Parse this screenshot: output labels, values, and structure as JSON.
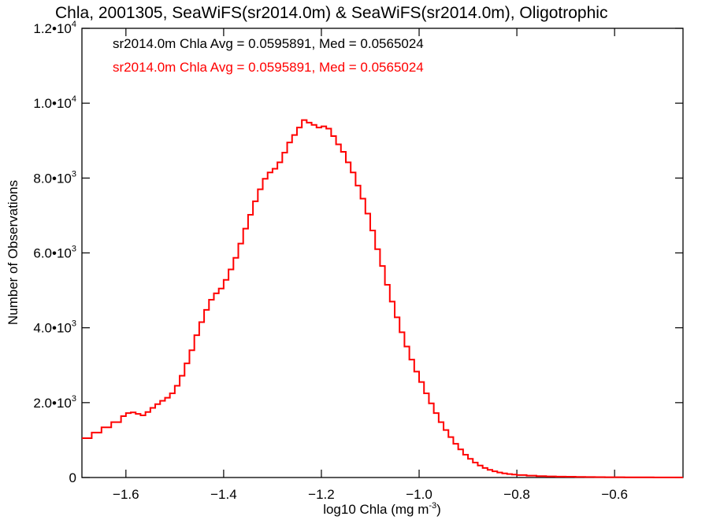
{
  "chart_data": {
    "type": "line",
    "title": "Chla, 2001305, SeaWiFS(sr2014.0m) & SeaWiFS(sr2014.0m), Oligotrophic",
    "xlabel": "log10 Chla (mg m",
    "xlabel_sup": "-3",
    "xlabel_suffix": ")",
    "ylabel": "Number of Observations",
    "xlim": [
      -1.69,
      -0.46
    ],
    "ylim": [
      0,
      12000
    ],
    "x_ticks": [
      {
        "value": -1.6,
        "label": "−1.6"
      },
      {
        "value": -1.4,
        "label": "−1.4"
      },
      {
        "value": -1.2,
        "label": "−1.2"
      },
      {
        "value": -1.0,
        "label": "−1.0"
      },
      {
        "value": -0.8,
        "label": "−0.8"
      },
      {
        "value": -0.6,
        "label": "−0.6"
      }
    ],
    "y_ticks": [
      {
        "value": 0,
        "label": "0",
        "exp": ""
      },
      {
        "value": 2000,
        "label": "2.0•10",
        "exp": "3"
      },
      {
        "value": 4000,
        "label": "4.0•10",
        "exp": "3"
      },
      {
        "value": 6000,
        "label": "6.0•10",
        "exp": "3"
      },
      {
        "value": 8000,
        "label": "8.0•10",
        "exp": "3"
      },
      {
        "value": 10000,
        "label": "1.0•10",
        "exp": "4"
      },
      {
        "value": 12000,
        "label": "1.2•10",
        "exp": "4"
      }
    ],
    "annotations": [
      {
        "text": "sr2014.0m Chla Avg = 0.0595891, Med = 0.0565024",
        "color": "#000000"
      },
      {
        "text": "sr2014.0m Chla Avg = 0.0595891, Med = 0.0565024",
        "color": "#ff0000"
      }
    ],
    "series": [
      {
        "color": "#ff0000",
        "points": [
          [
            -1.69,
            1050
          ],
          [
            -1.67,
            1200
          ],
          [
            -1.65,
            1340
          ],
          [
            -1.63,
            1480
          ],
          [
            -1.61,
            1640
          ],
          [
            -1.6,
            1720
          ],
          [
            -1.59,
            1740
          ],
          [
            -1.58,
            1700
          ],
          [
            -1.57,
            1660
          ],
          [
            -1.56,
            1750
          ],
          [
            -1.55,
            1860
          ],
          [
            -1.54,
            1960
          ],
          [
            -1.53,
            2050
          ],
          [
            -1.52,
            2130
          ],
          [
            -1.51,
            2250
          ],
          [
            -1.5,
            2450
          ],
          [
            -1.49,
            2720
          ],
          [
            -1.48,
            3050
          ],
          [
            -1.47,
            3400
          ],
          [
            -1.46,
            3800
          ],
          [
            -1.45,
            4150
          ],
          [
            -1.44,
            4480
          ],
          [
            -1.43,
            4750
          ],
          [
            -1.42,
            4920
          ],
          [
            -1.41,
            5050
          ],
          [
            -1.4,
            5280
          ],
          [
            -1.39,
            5560
          ],
          [
            -1.38,
            5870
          ],
          [
            -1.37,
            6250
          ],
          [
            -1.36,
            6650
          ],
          [
            -1.35,
            7020
          ],
          [
            -1.34,
            7380
          ],
          [
            -1.33,
            7700
          ],
          [
            -1.32,
            7980
          ],
          [
            -1.31,
            8150
          ],
          [
            -1.3,
            8250
          ],
          [
            -1.29,
            8420
          ],
          [
            -1.28,
            8680
          ],
          [
            -1.27,
            8950
          ],
          [
            -1.26,
            9150
          ],
          [
            -1.25,
            9350
          ],
          [
            -1.24,
            9550
          ],
          [
            -1.23,
            9480
          ],
          [
            -1.22,
            9420
          ],
          [
            -1.21,
            9350
          ],
          [
            -1.2,
            9380
          ],
          [
            -1.19,
            9320
          ],
          [
            -1.18,
            9120
          ],
          [
            -1.17,
            8900
          ],
          [
            -1.16,
            8700
          ],
          [
            -1.15,
            8420
          ],
          [
            -1.14,
            8150
          ],
          [
            -1.13,
            7800
          ],
          [
            -1.12,
            7450
          ],
          [
            -1.11,
            7050
          ],
          [
            -1.1,
            6600
          ],
          [
            -1.09,
            6100
          ],
          [
            -1.08,
            5650
          ],
          [
            -1.07,
            5150
          ],
          [
            -1.06,
            4700
          ],
          [
            -1.05,
            4280
          ],
          [
            -1.04,
            3880
          ],
          [
            -1.03,
            3500
          ],
          [
            -1.02,
            3150
          ],
          [
            -1.01,
            2830
          ],
          [
            -1.0,
            2550
          ],
          [
            -0.99,
            2250
          ],
          [
            -0.98,
            1980
          ],
          [
            -0.97,
            1720
          ],
          [
            -0.96,
            1480
          ],
          [
            -0.95,
            1270
          ],
          [
            -0.94,
            1080
          ],
          [
            -0.93,
            900
          ],
          [
            -0.92,
            750
          ],
          [
            -0.91,
            610
          ],
          [
            -0.9,
            500
          ],
          [
            -0.89,
            400
          ],
          [
            -0.88,
            320
          ],
          [
            -0.87,
            255
          ],
          [
            -0.86,
            205
          ],
          [
            -0.85,
            165
          ],
          [
            -0.84,
            135
          ],
          [
            -0.83,
            110
          ],
          [
            -0.82,
            92
          ],
          [
            -0.81,
            78
          ],
          [
            -0.8,
            66
          ],
          [
            -0.78,
            50
          ],
          [
            -0.76,
            38
          ],
          [
            -0.74,
            30
          ],
          [
            -0.72,
            24
          ],
          [
            -0.7,
            20
          ],
          [
            -0.68,
            16
          ],
          [
            -0.66,
            13
          ],
          [
            -0.64,
            11
          ],
          [
            -0.62,
            9
          ],
          [
            -0.6,
            8
          ],
          [
            -0.58,
            6
          ],
          [
            -0.56,
            5
          ],
          [
            -0.54,
            4
          ],
          [
            -0.52,
            3
          ],
          [
            -0.5,
            3
          ],
          [
            -0.48,
            2
          ],
          [
            -0.46,
            2
          ]
        ]
      }
    ]
  }
}
